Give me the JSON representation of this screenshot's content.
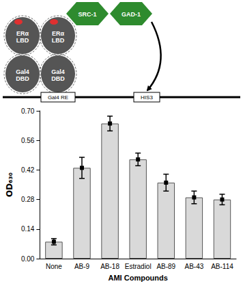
{
  "chart_data": {
    "type": "bar",
    "categories": [
      "None",
      "AB-9",
      "AB-18",
      "Estradiol",
      "AB-89",
      "AB-43",
      "AB-114"
    ],
    "values": [
      0.08,
      0.43,
      0.64,
      0.47,
      0.36,
      0.29,
      0.28
    ],
    "errors": [
      0.015,
      0.05,
      0.035,
      0.03,
      0.04,
      0.03,
      0.025
    ],
    "color": "#d9d9d9",
    "x_label": "AMI Compounds",
    "y_label": "OD₆₃₀",
    "ylim": [
      0,
      0.7
    ],
    "yticks": [
      {
        "value": 0,
        "label": "0.00"
      },
      0.14,
      0.28,
      0.42,
      0.56,
      {
        "value": 0.7,
        "label": "0.70"
      }
    ],
    "grid": false
  },
  "diagram": {
    "receptors": [
      {
        "lbd": "ERα LBD",
        "dbd": "Gal4 DBD"
      },
      {
        "lbd": "ERα LBD",
        "dbd": "Gal4 DBD"
      }
    ],
    "coactivators": [
      "SRC-1",
      "GAD-1"
    ],
    "response_element": "Gal4 RE",
    "reporter": "HIS3"
  }
}
